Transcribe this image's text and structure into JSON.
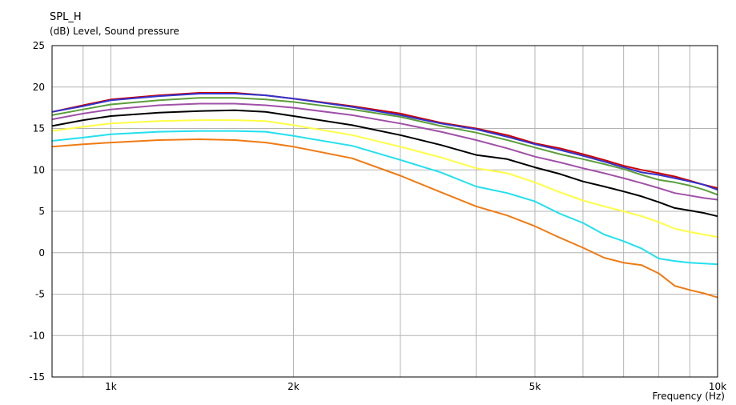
{
  "chart_data": {
    "type": "line",
    "title": "SPL_H",
    "ylabel": "(dB)  Level, Sound pressure",
    "xlabel": "Frequency  (Hz)",
    "x_scale": "log",
    "xlim": [
      800,
      10000
    ],
    "ylim": [
      -15,
      25
    ],
    "grid": true,
    "yticks": [
      25,
      20,
      15,
      10,
      5,
      0,
      -5,
      -10,
      -15
    ],
    "xticks": [
      {
        "value": 1000,
        "label": "1k"
      },
      {
        "value": 2000,
        "label": "2k"
      },
      {
        "value": 5000,
        "label": "5k"
      },
      {
        "value": 10000,
        "label": "10k"
      }
    ],
    "x_gridlines": [
      900,
      1000,
      2000,
      3000,
      4000,
      5000,
      6000,
      7000,
      8000,
      9000,
      10000
    ],
    "x": [
      800,
      900,
      1000,
      1200,
      1400,
      1600,
      1800,
      2000,
      2500,
      3000,
      3500,
      4000,
      4500,
      5000,
      5500,
      6000,
      6500,
      7000,
      7500,
      8000,
      8500,
      9000,
      9500,
      10000
    ],
    "series": [
      {
        "color": "#cc0000",
        "values": [
          17.0,
          17.8,
          18.5,
          19.0,
          19.3,
          19.3,
          19.0,
          18.6,
          17.7,
          16.8,
          15.7,
          15.0,
          14.2,
          13.2,
          12.6,
          11.9,
          11.2,
          10.5,
          10.0,
          9.6,
          9.2,
          8.7,
          8.2,
          7.8
        ]
      },
      {
        "color": "#3333cc",
        "values": [
          17.0,
          17.7,
          18.4,
          18.9,
          19.2,
          19.2,
          19.0,
          18.6,
          17.6,
          16.6,
          15.6,
          14.9,
          14.0,
          13.1,
          12.4,
          11.7,
          11.0,
          10.3,
          9.7,
          9.4,
          9.0,
          8.6,
          8.2,
          7.6
        ]
      },
      {
        "color": "#5c9e3a",
        "values": [
          16.6,
          17.3,
          17.9,
          18.4,
          18.7,
          18.7,
          18.5,
          18.2,
          17.3,
          16.4,
          15.3,
          14.5,
          13.6,
          12.7,
          11.9,
          11.3,
          10.7,
          10.1,
          9.4,
          8.8,
          8.5,
          8.1,
          7.6,
          7.0
        ]
      },
      {
        "color": "#a050a8",
        "values": [
          16.1,
          16.8,
          17.3,
          17.8,
          18.0,
          18.0,
          17.8,
          17.5,
          16.6,
          15.6,
          14.6,
          13.6,
          12.6,
          11.6,
          10.9,
          10.2,
          9.6,
          9.0,
          8.4,
          7.8,
          7.2,
          6.9,
          6.6,
          6.4
        ]
      },
      {
        "color": "#000000",
        "values": [
          15.3,
          16.0,
          16.5,
          16.9,
          17.1,
          17.2,
          17.0,
          16.5,
          15.4,
          14.2,
          13.0,
          11.8,
          11.3,
          10.3,
          9.5,
          8.6,
          8.0,
          7.4,
          6.8,
          6.1,
          5.4,
          5.1,
          4.8,
          4.4
        ]
      },
      {
        "color": "#ffff44",
        "values": [
          14.7,
          15.2,
          15.6,
          15.9,
          16.0,
          16.0,
          15.9,
          15.4,
          14.2,
          12.8,
          11.5,
          10.2,
          9.6,
          8.5,
          7.3,
          6.3,
          5.6,
          5.0,
          4.4,
          3.7,
          2.9,
          2.5,
          2.2,
          1.9
        ]
      },
      {
        "color": "#22e0ee",
        "values": [
          13.5,
          13.9,
          14.3,
          14.6,
          14.7,
          14.7,
          14.6,
          14.1,
          12.9,
          11.2,
          9.7,
          8.0,
          7.2,
          6.2,
          4.7,
          3.6,
          2.2,
          1.4,
          0.5,
          -0.7,
          -1.0,
          -1.2,
          -1.3,
          -1.4
        ]
      },
      {
        "color": "#f07a12",
        "values": [
          12.8,
          13.1,
          13.3,
          13.6,
          13.7,
          13.6,
          13.3,
          12.8,
          11.4,
          9.3,
          7.3,
          5.6,
          4.5,
          3.2,
          1.8,
          0.6,
          -0.6,
          -1.2,
          -1.5,
          -2.5,
          -4.0,
          -4.5,
          -4.9,
          -5.4
        ]
      }
    ],
    "legend": "none"
  }
}
